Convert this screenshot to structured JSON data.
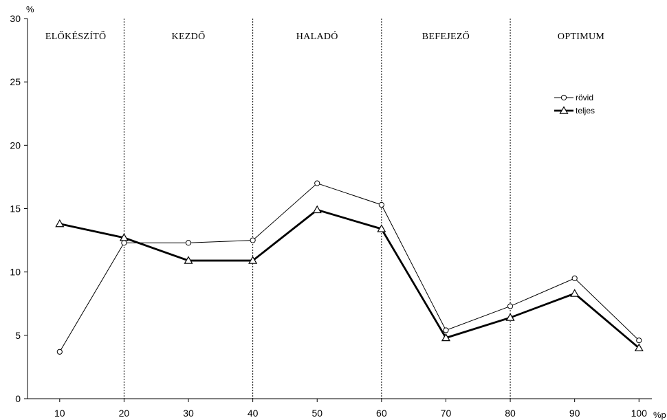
{
  "chart_data": {
    "type": "line",
    "y_unit": "%",
    "x_unit": "%p",
    "x": [
      10,
      20,
      30,
      40,
      50,
      60,
      70,
      80,
      90,
      100
    ],
    "xlim": [
      5,
      102
    ],
    "ylim": [
      0,
      30
    ],
    "yticks": [
      0,
      5,
      10,
      15,
      20,
      25,
      30
    ],
    "xticks": [
      10,
      20,
      30,
      40,
      50,
      60,
      70,
      80,
      90,
      100
    ],
    "series": [
      {
        "name": "rövid",
        "marker": "circle",
        "line": "thin",
        "values": [
          3.7,
          12.3,
          12.3,
          12.5,
          17.0,
          15.3,
          5.4,
          7.3,
          9.5,
          4.6
        ]
      },
      {
        "name": "teljes",
        "marker": "triangle",
        "line": "thick",
        "values": [
          13.8,
          12.7,
          10.9,
          10.9,
          14.9,
          13.4,
          4.8,
          6.4,
          8.3,
          4.0
        ]
      }
    ],
    "bands": [
      {
        "label": "ELŐKÉSZÍTŐ",
        "from": 5,
        "to": 20
      },
      {
        "label": "KEZDŐ",
        "from": 20,
        "to": 40
      },
      {
        "label": "HALADÓ",
        "from": 40,
        "to": 60
      },
      {
        "label": "BEFEJEZŐ",
        "from": 60,
        "to": 80
      },
      {
        "label": "OPTIMUM",
        "from": 80,
        "to": 102
      }
    ],
    "band_dividers": [
      20,
      40,
      60,
      80
    ],
    "legend_position": "top-right",
    "grid": false
  }
}
